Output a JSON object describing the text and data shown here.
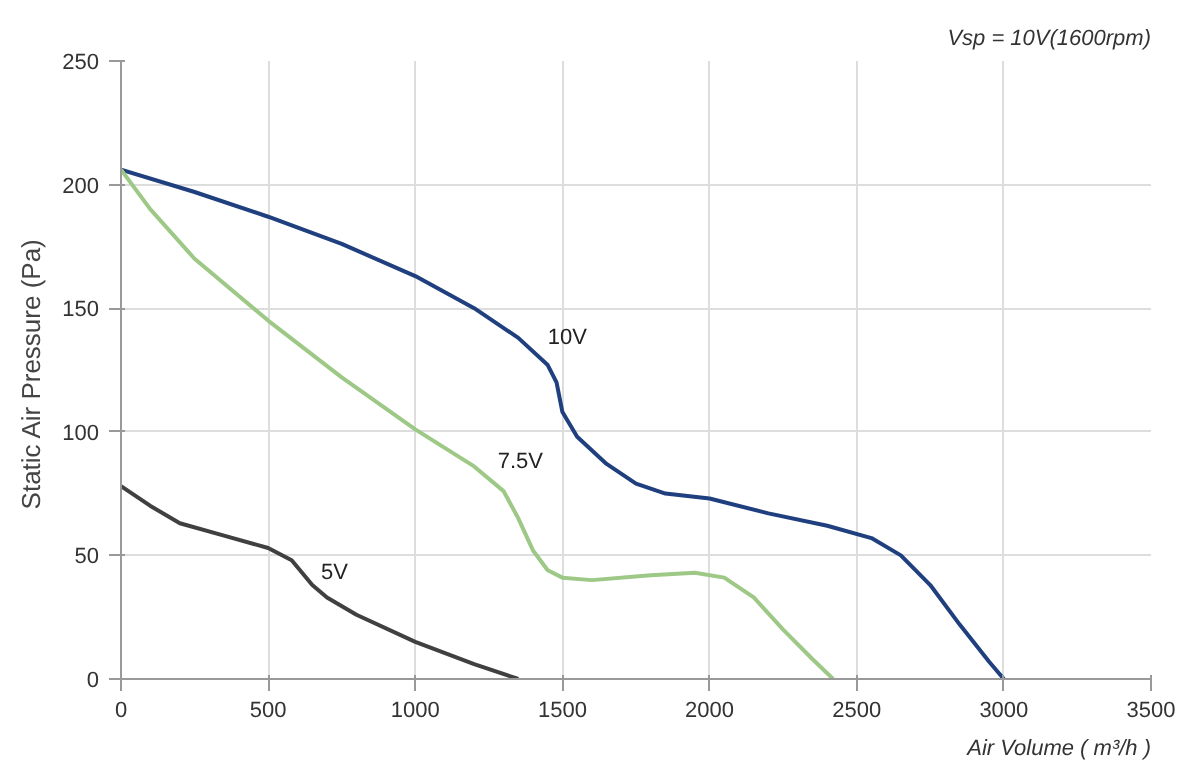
{
  "chart_data": {
    "type": "line",
    "xlabel": "Air Volume ( m³/h )",
    "ylabel": "Static Air Pressure  (Pa)",
    "xlim": [
      0,
      3500
    ],
    "ylim": [
      0,
      250
    ],
    "xticks": [
      0,
      500,
      1000,
      1500,
      2000,
      2500,
      3000,
      3500
    ],
    "yticks": [
      0,
      50,
      100,
      150,
      200,
      250
    ],
    "grid": true,
    "line_style": "solid",
    "series": [
      {
        "color": "#1f3f7f",
        "x": [
          0,
          250,
          500,
          750,
          1000,
          1200,
          1350,
          1450,
          1480,
          1500,
          1550,
          1650,
          1750,
          1850,
          2000,
          2200,
          2400,
          2550,
          2650,
          2750,
          2850,
          2950,
          3000
        ],
        "values": [
          206,
          197,
          187,
          176,
          163,
          150,
          138,
          127,
          120,
          108,
          98,
          87,
          79,
          75,
          73,
          67,
          62,
          57,
          50,
          38,
          22,
          7,
          0
        ]
      },
      {
        "color": "#9dc886",
        "x": [
          0,
          100,
          250,
          500,
          750,
          1000,
          1200,
          1300,
          1350,
          1400,
          1450,
          1500,
          1600,
          1800,
          1950,
          2050,
          2150,
          2250,
          2350,
          2420
        ],
        "values": [
          206,
          190,
          170,
          145,
          122,
          101,
          86,
          76,
          65,
          52,
          44,
          41,
          40,
          42,
          43,
          41,
          33,
          20,
          8,
          0
        ]
      },
      {
        "color": "#404040",
        "x": [
          0,
          100,
          200,
          350,
          500,
          580,
          650,
          700,
          800,
          1000,
          1200,
          1350
        ],
        "values": [
          78,
          70,
          63,
          58,
          53,
          48,
          38,
          33,
          26,
          15,
          6,
          0
        ]
      }
    ],
    "annotations": [
      {
        "text": "10V",
        "x": 1450,
        "y": 133
      },
      {
        "text": "7.5V",
        "x": 1280,
        "y": 83
      },
      {
        "text": "5V",
        "x": 680,
        "y": 38
      },
      "Vsp = 10V(1600rpm)"
    ]
  }
}
